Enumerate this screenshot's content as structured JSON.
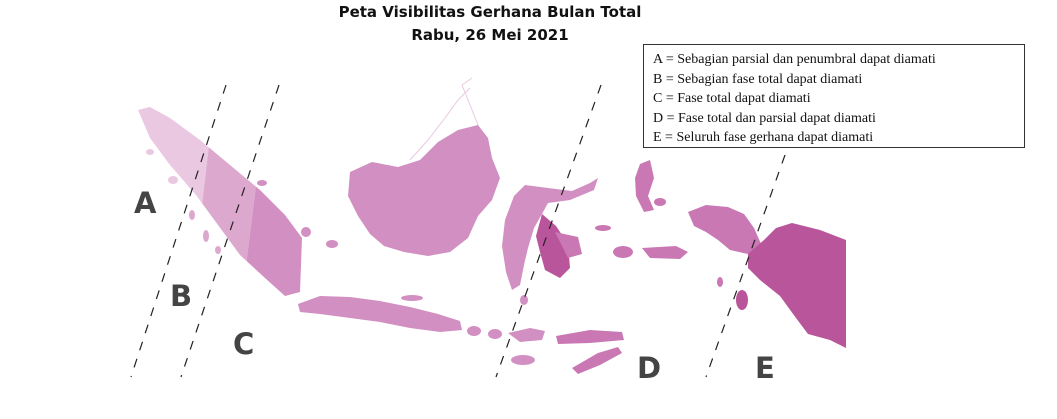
{
  "title": {
    "line1": "Peta Visibilitas Gerhana Bulan Total",
    "line2": "Rabu, 26 Mei 2021"
  },
  "legend": {
    "items": [
      {
        "key": "A",
        "text": "A = Sebagian parsial dan penumbral dapat diamati"
      },
      {
        "key": "B",
        "text": "B = Sebagian fase total dapat diamati"
      },
      {
        "key": "C",
        "text": "C = Fase total dapat diamati"
      },
      {
        "key": "D",
        "text": "D = Fase total dan parsial dapat diamati"
      },
      {
        "key": "E",
        "text": "E = Seluruh fase gerhana dapat diamati"
      }
    ]
  },
  "zones": {
    "A": {
      "label": "A",
      "color": "#ebc8e2"
    },
    "B": {
      "label": "B",
      "color": "#dca8cd"
    },
    "C": {
      "label": "C",
      "color": "#d28fc2"
    },
    "D": {
      "label": "D",
      "color": "#c978b4"
    },
    "E": {
      "label": "E",
      "color": "#b8559b"
    }
  }
}
